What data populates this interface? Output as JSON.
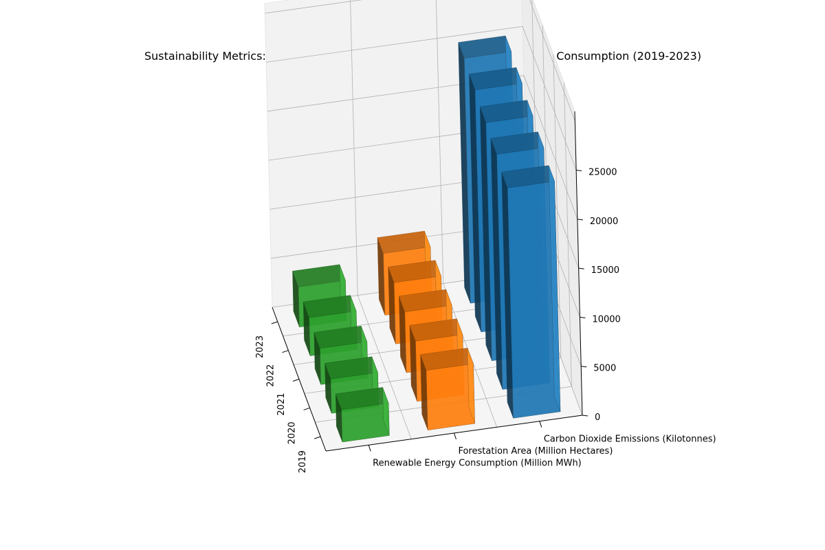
{
  "chart_data": {
    "type": "bar3d",
    "title": "Sustainability Metrics: CO2 Emissions, Forestation, and Renewable Energy Consumption (2019-2023)",
    "years": [
      "2019",
      "2020",
      "2021",
      "2022",
      "2023"
    ],
    "series": [
      {
        "name": "Renewable Energy Consumption (Million MWh)",
        "color": "#2ca02c",
        "values": [
          3300,
          3500,
          3700,
          3900,
          4100
        ]
      },
      {
        "name": "Forestation Area (Million Hectares)",
        "color": "#ff7f0e",
        "values": [
          6100,
          6150,
          6200,
          6250,
          6300
        ]
      },
      {
        "name": "Carbon Dioxide Emissions (Kilotonnes)",
        "color": "#1f77b4",
        "values": [
          23500,
          24000,
          24300,
          24700,
          25000
        ]
      }
    ],
    "zlim": [
      0,
      25000
    ],
    "zticks": [
      "0",
      "5000",
      "10000",
      "15000",
      "20000",
      "25000"
    ],
    "grid": true
  }
}
